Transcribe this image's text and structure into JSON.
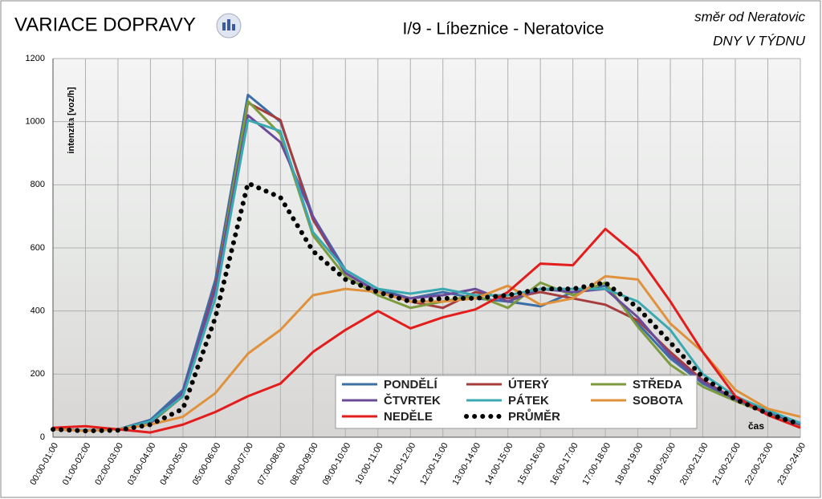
{
  "chart_data": {
    "type": "line",
    "title": "VARIACE DOPRAVY",
    "subtitle": "I/9 - Líbeznice - Neratovice",
    "annotations": [
      "směr od Neratovic",
      "DNY V TÝDNU"
    ],
    "y_label": "intenzita [voz/h]",
    "x_label": "čas",
    "categories": [
      "00:00-01:00",
      "01:00-02:00",
      "02:00-03:00",
      "03:00-04:00",
      "04:00-05:00",
      "05:00-06:00",
      "06:00-07:00",
      "07:00-08:00",
      "08:00-09:00",
      "09:00-10:00",
      "10:00-11:00",
      "11:00-12:00",
      "12:00-13:00",
      "13:00-14:00",
      "14:00-15:00",
      "15:00-16:00",
      "16:00-17:00",
      "17:00-18:00",
      "18:00-19:00",
      "19:00-20:00",
      "20:00-21:00",
      "21:00-22:00",
      "22:00-23:00",
      "23:00-24:00"
    ],
    "series": [
      {
        "name": "PONDĚLÍ",
        "color": "#3c6fa6",
        "style": "solid",
        "values": [
          25,
          22,
          25,
          55,
          150,
          500,
          1085,
          1000,
          700,
          530,
          470,
          440,
          460,
          440,
          430,
          415,
          460,
          480,
          360,
          250,
          170,
          120,
          80,
          40
        ]
      },
      {
        "name": "ÚTERÝ",
        "color": "#a63c3c",
        "style": "solid",
        "values": [
          25,
          22,
          25,
          45,
          130,
          480,
          1060,
          1005,
          690,
          520,
          460,
          430,
          410,
          460,
          440,
          460,
          440,
          420,
          370,
          270,
          180,
          120,
          75,
          40
        ]
      },
      {
        "name": "STŘEDA",
        "color": "#7d9a3c",
        "style": "solid",
        "values": [
          25,
          22,
          25,
          45,
          130,
          470,
          1065,
          960,
          640,
          510,
          450,
          410,
          430,
          450,
          410,
          490,
          450,
          490,
          350,
          230,
          160,
          115,
          75,
          35
        ]
      },
      {
        "name": "ČTVRTEK",
        "color": "#6b4c9a",
        "style": "solid",
        "values": [
          25,
          22,
          25,
          45,
          140,
          470,
          1020,
          935,
          700,
          520,
          460,
          440,
          450,
          470,
          430,
          470,
          460,
          470,
          380,
          260,
          175,
          120,
          80,
          40
        ]
      },
      {
        "name": "PÁTEK",
        "color": "#3aa9b2",
        "style": "solid",
        "values": [
          25,
          22,
          25,
          50,
          130,
          440,
          1005,
          970,
          650,
          530,
          470,
          455,
          470,
          450,
          450,
          470,
          470,
          470,
          430,
          340,
          200,
          130,
          85,
          45
        ]
      },
      {
        "name": "SOBOTA",
        "color": "#e0913c",
        "style": "solid",
        "values": [
          25,
          20,
          25,
          40,
          65,
          140,
          265,
          340,
          450,
          470,
          460,
          430,
          430,
          440,
          480,
          420,
          440,
          510,
          500,
          360,
          270,
          150,
          90,
          65
        ]
      },
      {
        "name": "NEDĚLE",
        "color": "#e31c1c",
        "style": "solid",
        "values": [
          30,
          35,
          25,
          15,
          40,
          80,
          130,
          170,
          270,
          340,
          400,
          345,
          380,
          405,
          460,
          550,
          545,
          660,
          575,
          430,
          270,
          130,
          70,
          30
        ]
      },
      {
        "name": "PRŮMĚR",
        "color": "#000000",
        "style": "dotted",
        "values": [
          25,
          20,
          22,
          40,
          90,
          380,
          805,
          760,
          590,
          500,
          460,
          430,
          440,
          440,
          450,
          470,
          470,
          490,
          410,
          300,
          190,
          120,
          75,
          40
        ]
      }
    ],
    "ylim": [
      0,
      1200
    ],
    "yticks": [
      0,
      200,
      400,
      600,
      800,
      1000,
      1200
    ],
    "grid": true
  }
}
